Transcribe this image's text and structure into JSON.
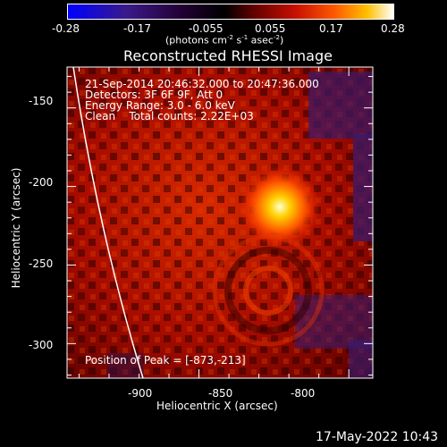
{
  "colorbar": {
    "ticks": [
      "-0.28",
      "-0.17",
      "-0.055",
      "0.055",
      "0.17",
      "0.28"
    ],
    "tick_values": [
      -0.28,
      -0.17,
      -0.055,
      0.055,
      0.17,
      0.28
    ],
    "range": [
      -0.28,
      0.28
    ],
    "units_prefix": "(photons cm",
    "units_exp1": "-2",
    "units_mid": " s",
    "units_exp2": "-1",
    "units_mid2": " asec",
    "units_exp3": "-2",
    "units_suffix": ")",
    "colors": [
      "#0000ff",
      "#4b0082",
      "#000000",
      "#a50000",
      "#ff2a00",
      "#ff8c00",
      "#ffd700",
      "#ffffff"
    ]
  },
  "title": "Reconstructed RHESSI Image",
  "info": {
    "line1": "21-Sep-2014 20:46:32.000 to 20:47:36.000",
    "line2": "Detectors: 3F 6F 9F, Att 0",
    "line3": "Energy Range: 3.0 - 6.0 keV",
    "line4": "Clean    Total counts: 2.22E+03",
    "peak": "Position of Peak = [-873,-213]"
  },
  "axes": {
    "xlabel": "Heliocentric X (arcsec)",
    "ylabel": "Heliocentric Y (arcsec)",
    "xticks": [
      "-900",
      "-850",
      "-800"
    ],
    "xtick_values": [
      -900,
      -850,
      -800
    ],
    "yticks": [
      "-150",
      "-200",
      "-250",
      "-300"
    ],
    "ytick_values": [
      -150,
      -200,
      -250,
      -300
    ],
    "xlim": [
      -944,
      -842
    ],
    "ylim": [
      -322,
      -124
    ]
  },
  "peak": {
    "x": -873,
    "y": -213
  },
  "timestamp": "17-May-2022 10:43"
}
